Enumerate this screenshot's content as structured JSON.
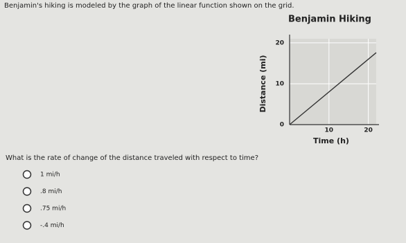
{
  "intro": "Benjamin's hiking is modeled by the graph of the linear function shown on the grid.",
  "chart_data": {
    "type": "line",
    "title": "Benjamin Hiking",
    "x_label": "Time (h)",
    "y_label": "Distance (mi)",
    "x": [
      0,
      22
    ],
    "values": [
      0,
      17.6
    ],
    "color": "#333333",
    "xlim": [
      0,
      22
    ],
    "ylim": [
      0,
      21
    ],
    "xticks": [
      10,
      20
    ],
    "yticks": [
      0,
      10,
      20
    ],
    "grid": true
  },
  "question": "What is the rate of change of the distance traveled with respect to time?",
  "options": [
    "1 mi/h",
    ".8 mi/h",
    ".75 mi/h",
    "-.4 mi/h"
  ]
}
